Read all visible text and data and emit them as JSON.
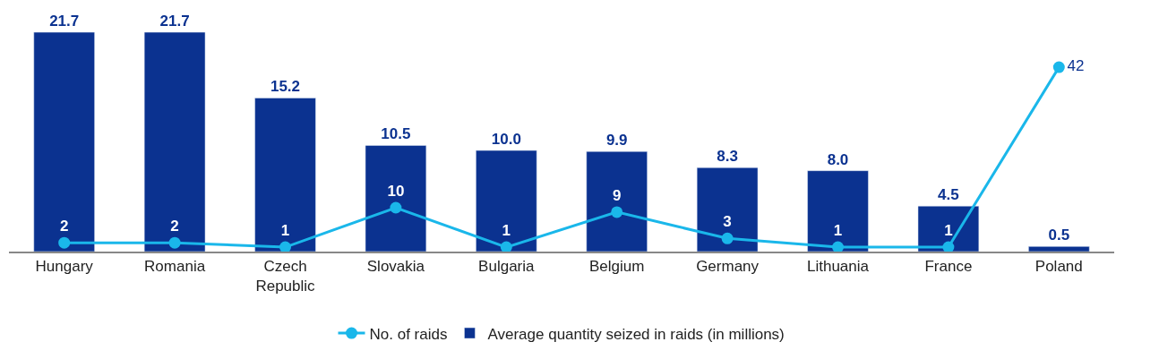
{
  "chart_data": {
    "type": "bar",
    "categories": [
      "Hungary",
      "Romania",
      "Czech Republic",
      "Slovakia",
      "Bulgaria",
      "Belgium",
      "Germany",
      "Lithuania",
      "France",
      "Poland"
    ],
    "series": [
      {
        "name": "No. of raids",
        "type": "line",
        "axis": "y2",
        "color": "#1ab7ea",
        "values": [
          2,
          2,
          1,
          10,
          1,
          9,
          3,
          1,
          1,
          42
        ]
      },
      {
        "name": "Average quantity seized in raids (in millions)",
        "color": "#0b3290",
        "values": [
          21.7,
          21.7,
          15.2,
          10.5,
          10.0,
          9.9,
          8.3,
          8.0,
          4.5,
          0.5
        ],
        "value_labels": [
          "21.7",
          "21.7",
          "15.2",
          "10.5",
          "10.0",
          "9.9",
          "8.3",
          "8.0",
          "4.5",
          "0.5"
        ]
      }
    ],
    "data_labels": true,
    "marker": "circle",
    "line_style": "solid",
    "legend": "bottom",
    "tick_labels": "x"
  }
}
